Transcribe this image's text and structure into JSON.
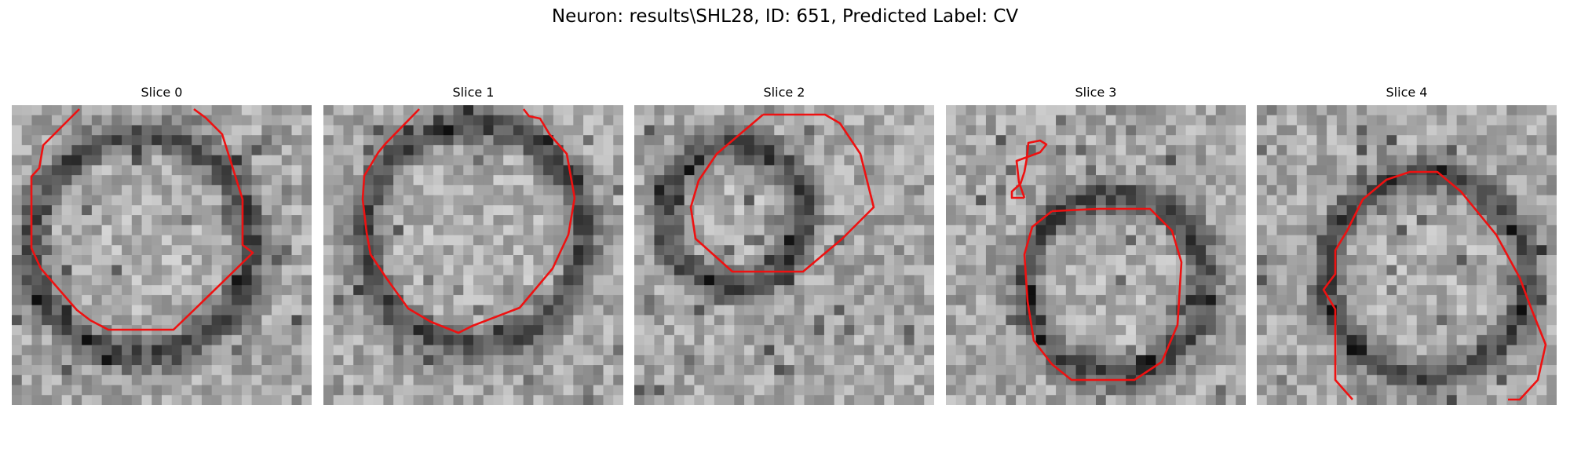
{
  "figure": {
    "title": "Neuron: results\\SHL28, ID: 651, Predicted Label: CV",
    "colormap": "gray",
    "contour_color": "#ee1111"
  },
  "panels": [
    {
      "title": "Slice 0"
    },
    {
      "title": "Slice 1"
    },
    {
      "title": "Slice 2"
    },
    {
      "title": "Slice 3"
    },
    {
      "title": "Slice 4"
    }
  ]
}
